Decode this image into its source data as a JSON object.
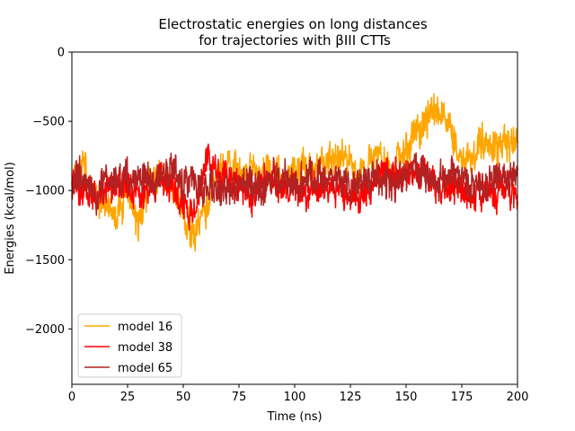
{
  "chart_data": {
    "type": "line",
    "title": "Electrostatic energies on long distances",
    "subtitle": "for trajectories with βIII CTTs",
    "xlabel": "Time (ns)",
    "ylabel": "Energies (kcal/mol)",
    "xlim": [
      0,
      200
    ],
    "ylim": [
      -2400,
      0
    ],
    "xticks": [
      0,
      25,
      50,
      75,
      100,
      125,
      150,
      175,
      200
    ],
    "yticks": [
      0,
      -500,
      -1000,
      -1500,
      -2000
    ],
    "xtick_labels": [
      "0",
      "25",
      "50",
      "75",
      "100",
      "125",
      "150",
      "175",
      "200"
    ],
    "ytick_labels": [
      "0",
      "−500",
      "−1000",
      "−1500",
      "−2000"
    ],
    "grid": false,
    "legend_position": "lower-left",
    "series": [
      {
        "name": "model 16",
        "color": "#FFA500",
        "x": [
          0,
          5,
          10,
          15,
          20,
          25,
          30,
          35,
          40,
          45,
          50,
          55,
          60,
          65,
          70,
          75,
          80,
          85,
          90,
          95,
          100,
          105,
          110,
          115,
          120,
          125,
          130,
          135,
          140,
          145,
          150,
          155,
          160,
          165,
          170,
          175,
          180,
          185,
          190,
          195,
          200
        ],
        "y": [
          -900,
          -850,
          -1000,
          -1100,
          -1150,
          -1050,
          -1200,
          -950,
          -900,
          -950,
          -1150,
          -1350,
          -1150,
          -900,
          -850,
          -850,
          -900,
          -850,
          -900,
          -950,
          -850,
          -800,
          -850,
          -800,
          -750,
          -800,
          -850,
          -750,
          -800,
          -850,
          -700,
          -600,
          -450,
          -400,
          -550,
          -800,
          -750,
          -650,
          -700,
          -700,
          -650
        ],
        "noise": 120,
        "seed": 16
      },
      {
        "name": "model 38",
        "color": "#FF0000",
        "x": [
          0,
          5,
          10,
          15,
          20,
          25,
          30,
          35,
          40,
          45,
          50,
          55,
          60,
          65,
          70,
          75,
          80,
          85,
          90,
          95,
          100,
          105,
          110,
          115,
          120,
          125,
          130,
          135,
          140,
          145,
          150,
          155,
          160,
          165,
          170,
          175,
          180,
          185,
          190,
          195,
          200
        ],
        "y": [
          -950,
          -1000,
          -1050,
          -1000,
          -950,
          -1000,
          -1050,
          -1000,
          -950,
          -1000,
          -1100,
          -1150,
          -800,
          -850,
          -900,
          -1000,
          -1050,
          -950,
          -900,
          -1000,
          -950,
          -1000,
          -1000,
          -950,
          -1000,
          -1050,
          -1050,
          -950,
          -900,
          -850,
          -900,
          -850,
          -900,
          -1000,
          -950,
          -1000,
          -1050,
          -1000,
          -1000,
          -1000,
          -1000
        ],
        "noise": 110,
        "seed": 38
      },
      {
        "name": "model 65",
        "color": "#B22222",
        "x": [
          0,
          5,
          10,
          15,
          20,
          25,
          30,
          35,
          40,
          45,
          50,
          55,
          60,
          65,
          70,
          75,
          80,
          85,
          90,
          95,
          100,
          105,
          110,
          115,
          120,
          125,
          130,
          135,
          140,
          145,
          150,
          155,
          160,
          165,
          170,
          175,
          180,
          185,
          190,
          195,
          200
        ],
        "y": [
          -950,
          -900,
          -1050,
          -950,
          -950,
          -900,
          -850,
          -950,
          -900,
          -850,
          -950,
          -950,
          -950,
          -1000,
          -1000,
          -950,
          -950,
          -1000,
          -950,
          -900,
          -950,
          -950,
          -900,
          -900,
          -900,
          -1000,
          -950,
          -900,
          -900,
          -950,
          -900,
          -850,
          -900,
          -950,
          -900,
          -900,
          -950,
          -950,
          -900,
          -900,
          -900
        ],
        "noise": 120,
        "seed": 65
      }
    ]
  }
}
